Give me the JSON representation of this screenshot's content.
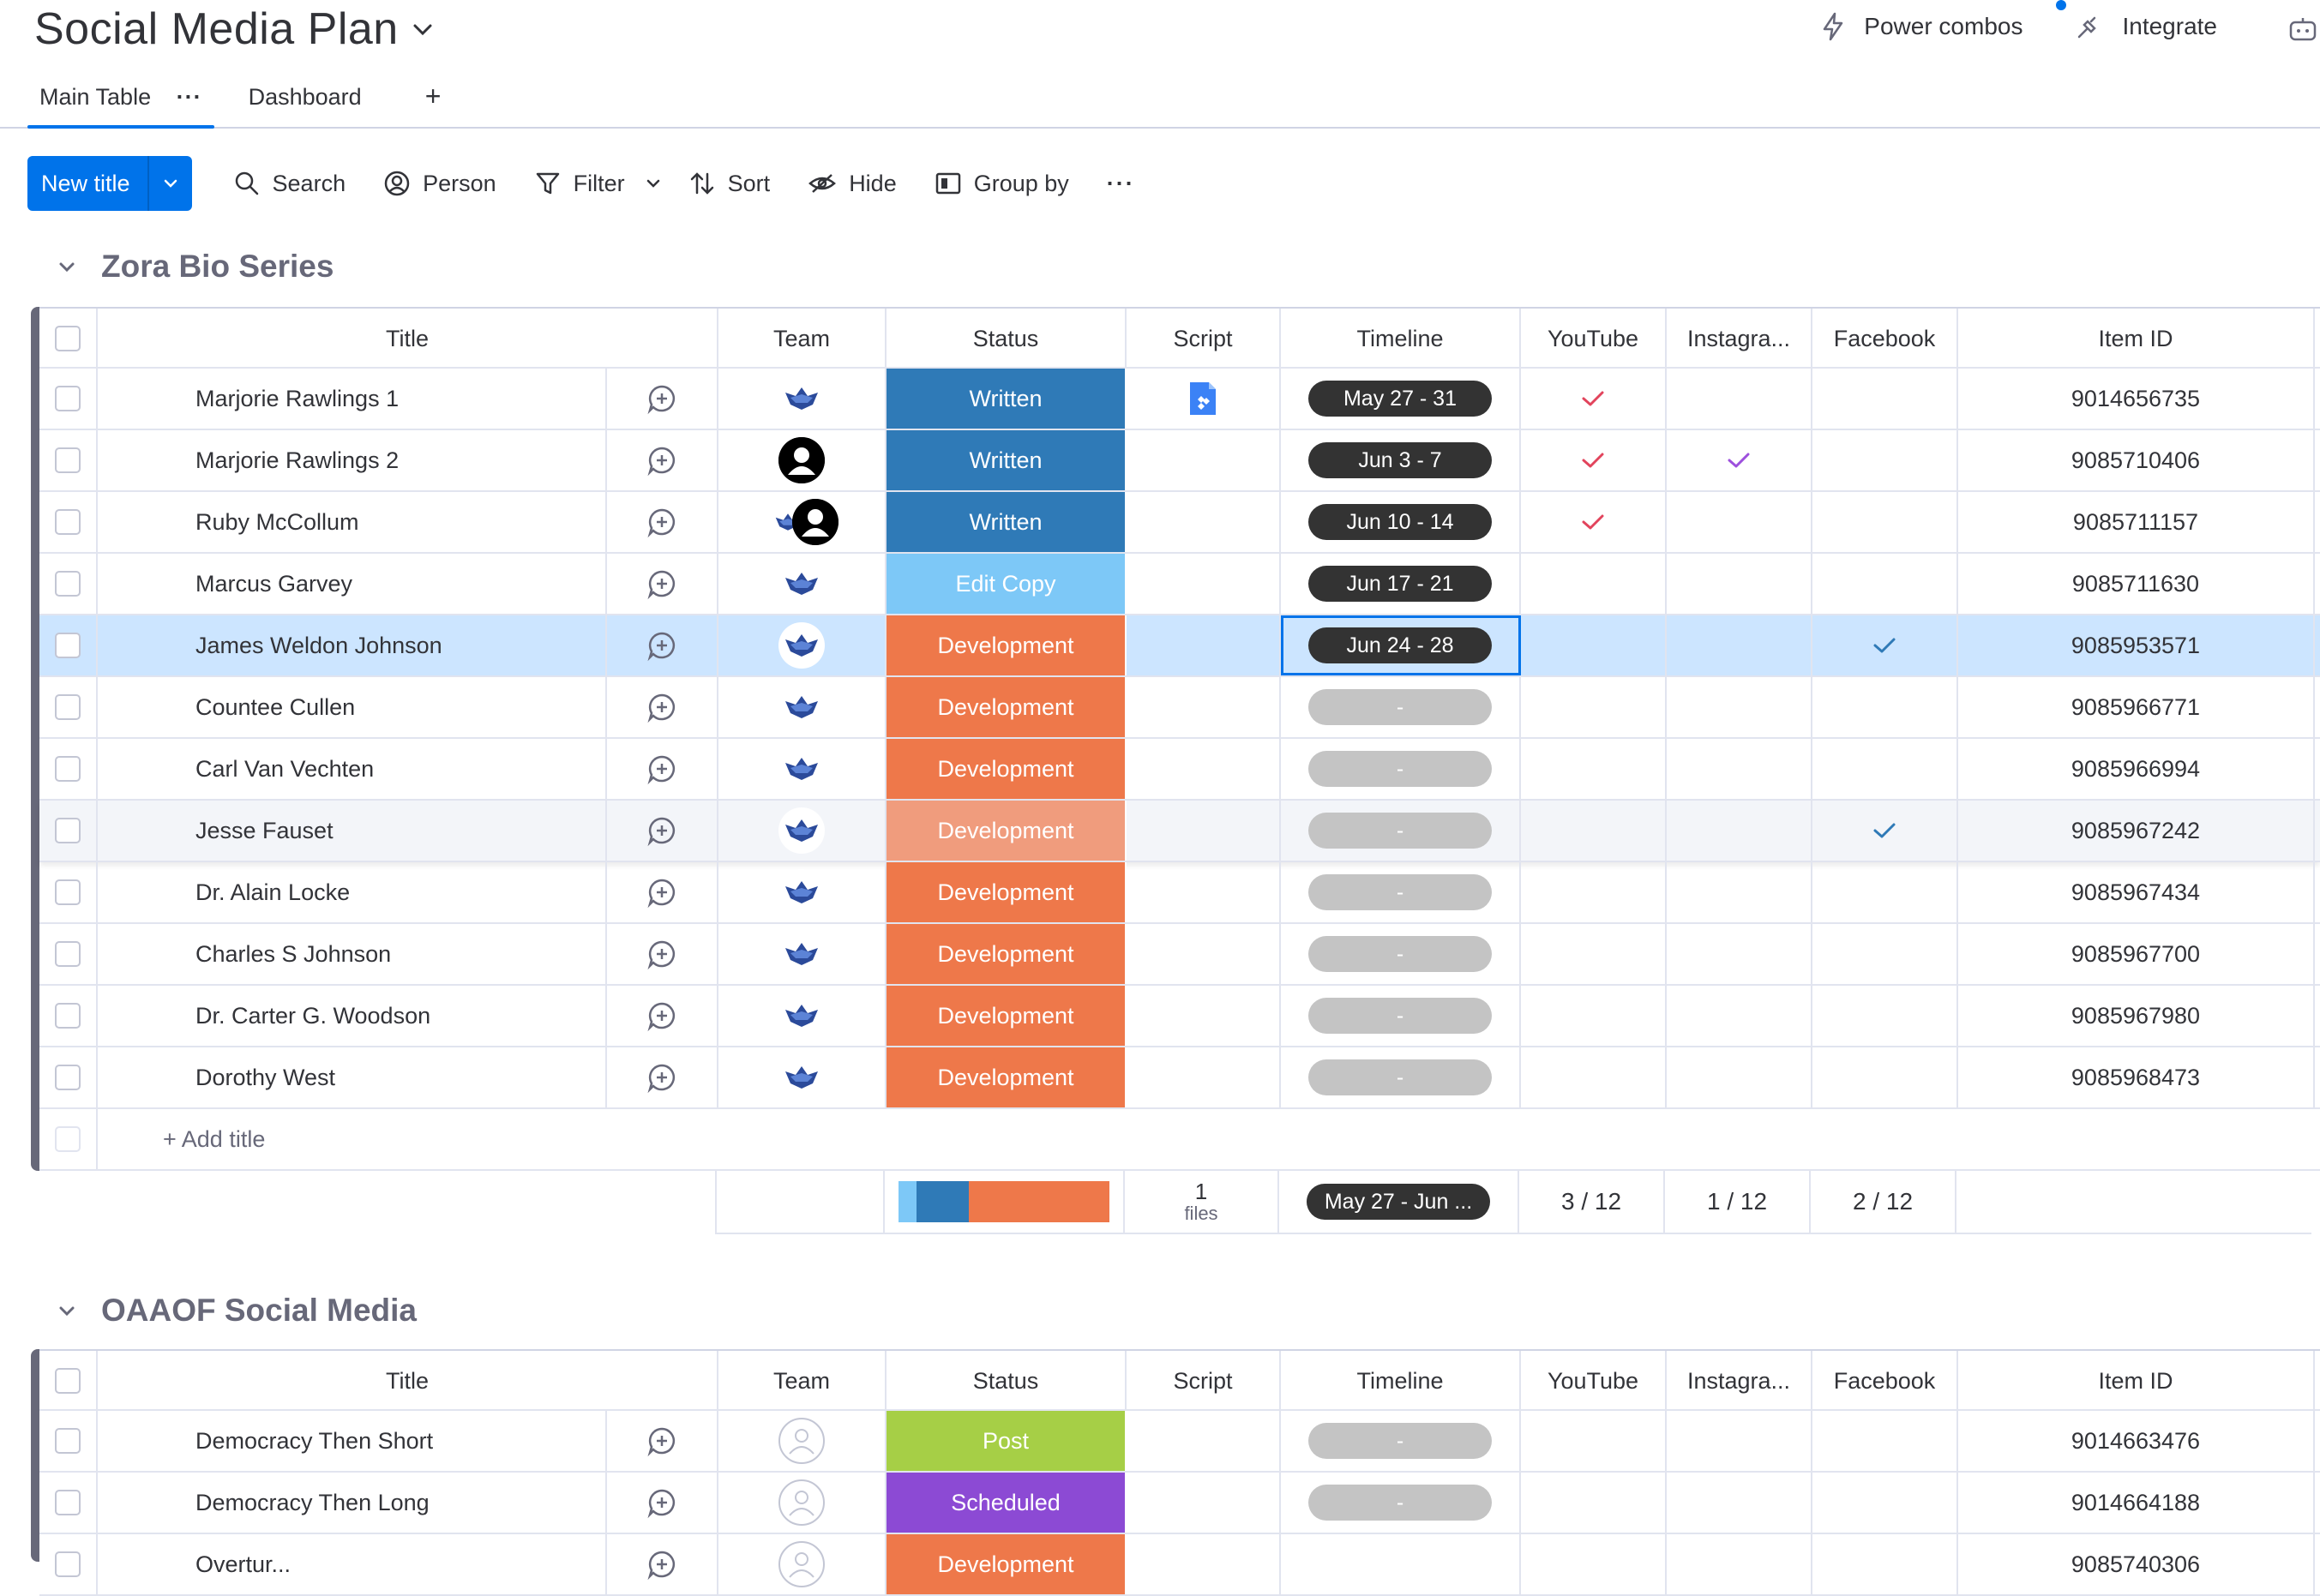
{
  "header": {
    "board_title": "Social Media Plan",
    "power_combos": "Power combos",
    "integrate": "Integrate"
  },
  "tabs": [
    {
      "label": "Main Table",
      "dots": "···"
    },
    {
      "label": "Dashboard"
    }
  ],
  "tab_add": "+",
  "toolbar": {
    "new_label": "New title",
    "search": "Search",
    "person": "Person",
    "filter": "Filter",
    "sort": "Sort",
    "hide": "Hide",
    "group_by": "Group by",
    "more": "···"
  },
  "columns": {
    "title": "Title",
    "team": "Team",
    "status": "Status",
    "script": "Script",
    "timeline": "Timeline",
    "youtube": "YouTube",
    "instagram": "Instagra...",
    "facebook": "Facebook",
    "item_id": "Item ID"
  },
  "colors": {
    "written": "#2f7ab7",
    "edit_copy": "#7dc8f7",
    "development": "#ee784a",
    "development_hover": "#f09c7d",
    "post": "#a6cf46",
    "scheduled": "#8c4ad4",
    "check_red": "#e2445c",
    "check_purple": "#9d50dd",
    "check_blue": "#2f7ab7",
    "accent": "#0073ea"
  },
  "groups": [
    {
      "name": "Zora Bio Series",
      "rows": [
        {
          "title": "Marjorie Rawlings 1",
          "team": "team",
          "status": "Written",
          "script": "doc",
          "timeline": "May 27 - 31",
          "youtube": "red",
          "instagram": "",
          "facebook": "",
          "item_id": "9014656735"
        },
        {
          "title": "Marjorie Rawlings 2",
          "team": "person",
          "status": "Written",
          "script": "",
          "timeline": "Jun 3 - 7",
          "youtube": "red",
          "instagram": "purple",
          "facebook": "",
          "item_id": "9085710406"
        },
        {
          "title": "Ruby McCollum",
          "team": "both",
          "status": "Written",
          "script": "",
          "timeline": "Jun 10 - 14",
          "youtube": "red",
          "instagram": "",
          "facebook": "",
          "item_id": "9085711157"
        },
        {
          "title": "Marcus Garvey",
          "team": "team",
          "status": "Edit Copy",
          "script": "",
          "timeline": "Jun 17 - 21",
          "youtube": "",
          "instagram": "",
          "facebook": "",
          "item_id": "9085711630"
        },
        {
          "title": "James Weldon Johnson",
          "team": "team",
          "status": "Development",
          "script": "",
          "timeline": "Jun 24 - 28",
          "youtube": "",
          "instagram": "",
          "facebook": "blue",
          "item_id": "9085953571"
        },
        {
          "title": "Countee Cullen",
          "team": "team",
          "status": "Development",
          "script": "",
          "timeline": "-",
          "youtube": "",
          "instagram": "",
          "facebook": "",
          "item_id": "9085966771"
        },
        {
          "title": "Carl Van Vechten",
          "team": "team",
          "status": "Development",
          "script": "",
          "timeline": "-",
          "youtube": "",
          "instagram": "",
          "facebook": "",
          "item_id": "9085966994"
        },
        {
          "title": "Jesse Fauset",
          "team": "team",
          "status": "Development",
          "script": "",
          "timeline": "-",
          "youtube": "",
          "instagram": "",
          "facebook": "blue",
          "item_id": "9085967242"
        },
        {
          "title": "Dr. Alain Locke",
          "team": "team",
          "status": "Development",
          "script": "",
          "timeline": "-",
          "youtube": "",
          "instagram": "",
          "facebook": "",
          "item_id": "9085967434"
        },
        {
          "title": "Charles S Johnson",
          "team": "team",
          "status": "Development",
          "script": "",
          "timeline": "-",
          "youtube": "",
          "instagram": "",
          "facebook": "",
          "item_id": "9085967700"
        },
        {
          "title": "Dr. Carter G. Woodson",
          "team": "team",
          "status": "Development",
          "script": "",
          "timeline": "-",
          "youtube": "",
          "instagram": "",
          "facebook": "",
          "item_id": "9085967980"
        },
        {
          "title": "Dorothy West",
          "team": "team",
          "status": "Development",
          "script": "",
          "timeline": "-",
          "youtube": "",
          "instagram": "",
          "facebook": "",
          "item_id": "9085968473"
        }
      ],
      "add_label": "+ Add title",
      "footer": {
        "files_count": "1",
        "files_label": "files",
        "timeline": "May 27 - Jun ...",
        "youtube": "3 / 12",
        "instagram": "1 / 12",
        "facebook": "2 / 12"
      }
    },
    {
      "name": "OAAOF Social Media",
      "rows": [
        {
          "title": "Democracy Then Short",
          "team": "empty",
          "status": "Post",
          "script": "",
          "timeline": "-",
          "youtube": "",
          "instagram": "",
          "facebook": "",
          "item_id": "9014663476"
        },
        {
          "title": "Democracy Then Long",
          "team": "empty",
          "status": "Scheduled",
          "script": "",
          "timeline": "-",
          "youtube": "",
          "instagram": "",
          "facebook": "",
          "item_id": "9014664188"
        },
        {
          "title": "Overtur...",
          "team": "empty",
          "status": "Development",
          "script": "",
          "timeline": "",
          "youtube": "",
          "instagram": "",
          "facebook": "",
          "item_id": "9085740306"
        }
      ]
    }
  ]
}
